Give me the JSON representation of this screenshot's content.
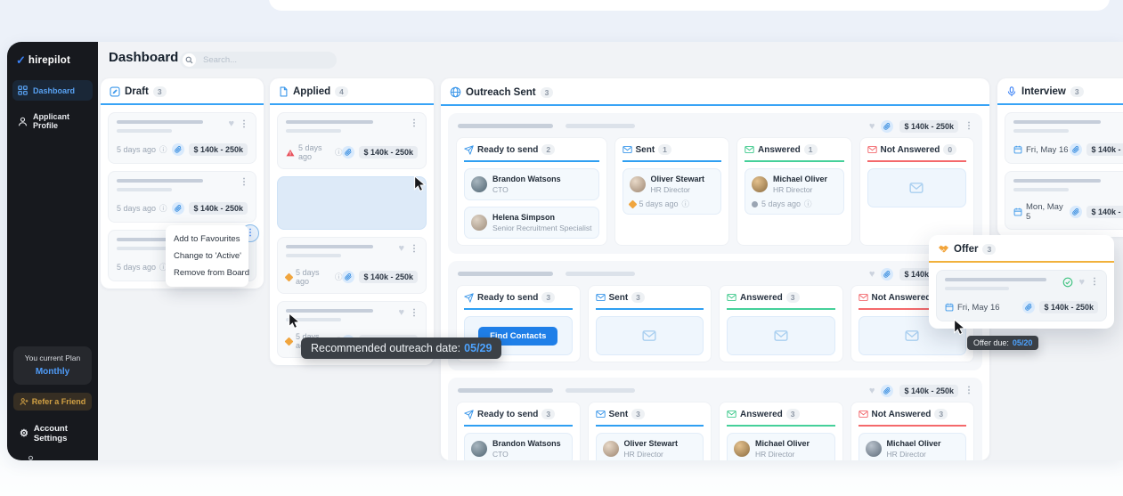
{
  "brand": {
    "logo_text": "hirepilot",
    "accent": "#3b82f6"
  },
  "sidebar": {
    "nav": [
      {
        "label": "Dashboard",
        "icon": "dashboard-grid-icon",
        "active": true
      },
      {
        "label": "Applicant Profile",
        "icon": "person-icon",
        "active": false
      }
    ],
    "plan_caption": "You current Plan",
    "plan_value": "Monthly",
    "refer_label": "Refer a Friend",
    "settings_label": "Account Settings"
  },
  "topbar": {
    "title": "Dashboard",
    "search_placeholder": "Search..."
  },
  "shared": {
    "salary_badge": "$ 140k - 250k",
    "ago_text": "5 days ago"
  },
  "columns": {
    "draft": {
      "title": "Draft",
      "count": "3",
      "accent": "#38a3f6",
      "cards": [
        {
          "icons": [
            "heart",
            "dots"
          ],
          "footer": "ago",
          "badge": true
        },
        {
          "icons": [
            "dots"
          ],
          "footer": "ago",
          "badge": true
        },
        {
          "icons": [
            "dots-active"
          ],
          "footer": "ago",
          "badge": true
        }
      ]
    },
    "applied": {
      "title": "Applied",
      "count": "4",
      "accent": "#38a3f6",
      "cards": [
        {
          "icons": [
            "dots"
          ],
          "warn": "red-triangle",
          "footer": "ago",
          "badge": true
        },
        {
          "dropzone": true
        },
        {
          "icons": [
            "heart",
            "dots"
          ],
          "warn": "orange-diamond",
          "footer": "ago",
          "badge": true
        },
        {
          "icons": [
            "heart",
            "dots"
          ],
          "warn": "orange-diamond",
          "footer": "ago",
          "badge": true
        }
      ]
    },
    "interview": {
      "title": "Interview",
      "count": "3",
      "accent": "#38a3f6",
      "cards": [
        {
          "icons": [
            "heart",
            "dots"
          ],
          "footer": "date",
          "date": "Fri, May 16",
          "badge": true
        },
        {
          "icons": [
            "heart",
            "dots"
          ],
          "footer": "date",
          "date": "Mon, May 5",
          "badge": true
        }
      ]
    },
    "offer": {
      "title": "Offer",
      "count": "3",
      "accent": "#f1b13b",
      "cards": [
        {
          "icons": [
            "check",
            "heart",
            "dots"
          ],
          "footer": "date",
          "date": "Fri, May 16",
          "badge": true
        }
      ]
    }
  },
  "outreach": {
    "title": "Outreach Sent",
    "count": "3",
    "accent": "#38a3f6",
    "groups": [
      "Ready to send",
      "Sent",
      "Answered",
      "Not Answered"
    ],
    "group_accents": [
      "#2f9ff2",
      "#2f9ff2",
      "#45d09a",
      "#f4696b"
    ],
    "rows": [
      {
        "counts": [
          "2",
          "1",
          "1",
          "0"
        ],
        "cells": [
          {
            "type": "contacts",
            "items": [
              {
                "name": "Brandon Watsons",
                "role": "CTO",
                "avatar": [
                  "#a8b6bf",
                  "#4f6472"
                ]
              },
              {
                "name": "Helena Simpson",
                "role": "Senior Recruitment Specialist",
                "avatar": [
                  "#ded3c5",
                  "#9e8d7c"
                ]
              }
            ]
          },
          {
            "type": "contacts",
            "items": [
              {
                "name": "Oliver Stewart",
                "role": "HR Director",
                "status": "orange-diamond",
                "avatar": [
                  "#e8d9c8",
                  "#9c8570"
                ]
              }
            ]
          },
          {
            "type": "contacts",
            "items": [
              {
                "name": "Michael Oliver",
                "role": "HR Director",
                "status": "gray-dot",
                "avatar": [
                  "#e4c18e",
                  "#8a6b3f"
                ]
              }
            ]
          },
          {
            "type": "empty"
          }
        ]
      },
      {
        "counts": [
          "3",
          "3",
          "3",
          "3"
        ],
        "cells": [
          {
            "type": "button",
            "label": "Find Contacts"
          },
          {
            "type": "empty"
          },
          {
            "type": "empty"
          },
          {
            "type": "empty"
          }
        ]
      },
      {
        "counts": [
          "3",
          "3",
          "3",
          "3"
        ],
        "cells": [
          {
            "type": "contacts",
            "items": [
              {
                "name": "Brandon Watsons",
                "role": "CTO",
                "avatar": [
                  "#a8b6bf",
                  "#4f6472"
                ]
              }
            ]
          },
          {
            "type": "contacts",
            "items": [
              {
                "name": "Oliver Stewart",
                "role": "HR Director",
                "status": "red-triangle",
                "avatar": [
                  "#e8d9c8",
                  "#9c8570"
                ]
              }
            ]
          },
          {
            "type": "contacts",
            "items": [
              {
                "name": "Michael Oliver",
                "role": "HR Director",
                "status": "orange-diamond",
                "avatar": [
                  "#e4c18e",
                  "#8a6b3f"
                ]
              }
            ]
          },
          {
            "type": "contacts",
            "items": [
              {
                "name": "Michael Oliver",
                "role": "HR Director",
                "status": "gray-dot",
                "avatar": [
                  "#b9c2cc",
                  "#5d6b79"
                ]
              }
            ]
          }
        ]
      }
    ]
  },
  "context_menu": {
    "items": [
      "Add to Favourites",
      "Change to 'Active'",
      "Remove from Board"
    ]
  },
  "tooltips": {
    "outreach_date": {
      "label": "Recommended outreach date:",
      "value": "05/29"
    },
    "offer_due": {
      "label": "Offer due:",
      "value": "05/20"
    }
  }
}
